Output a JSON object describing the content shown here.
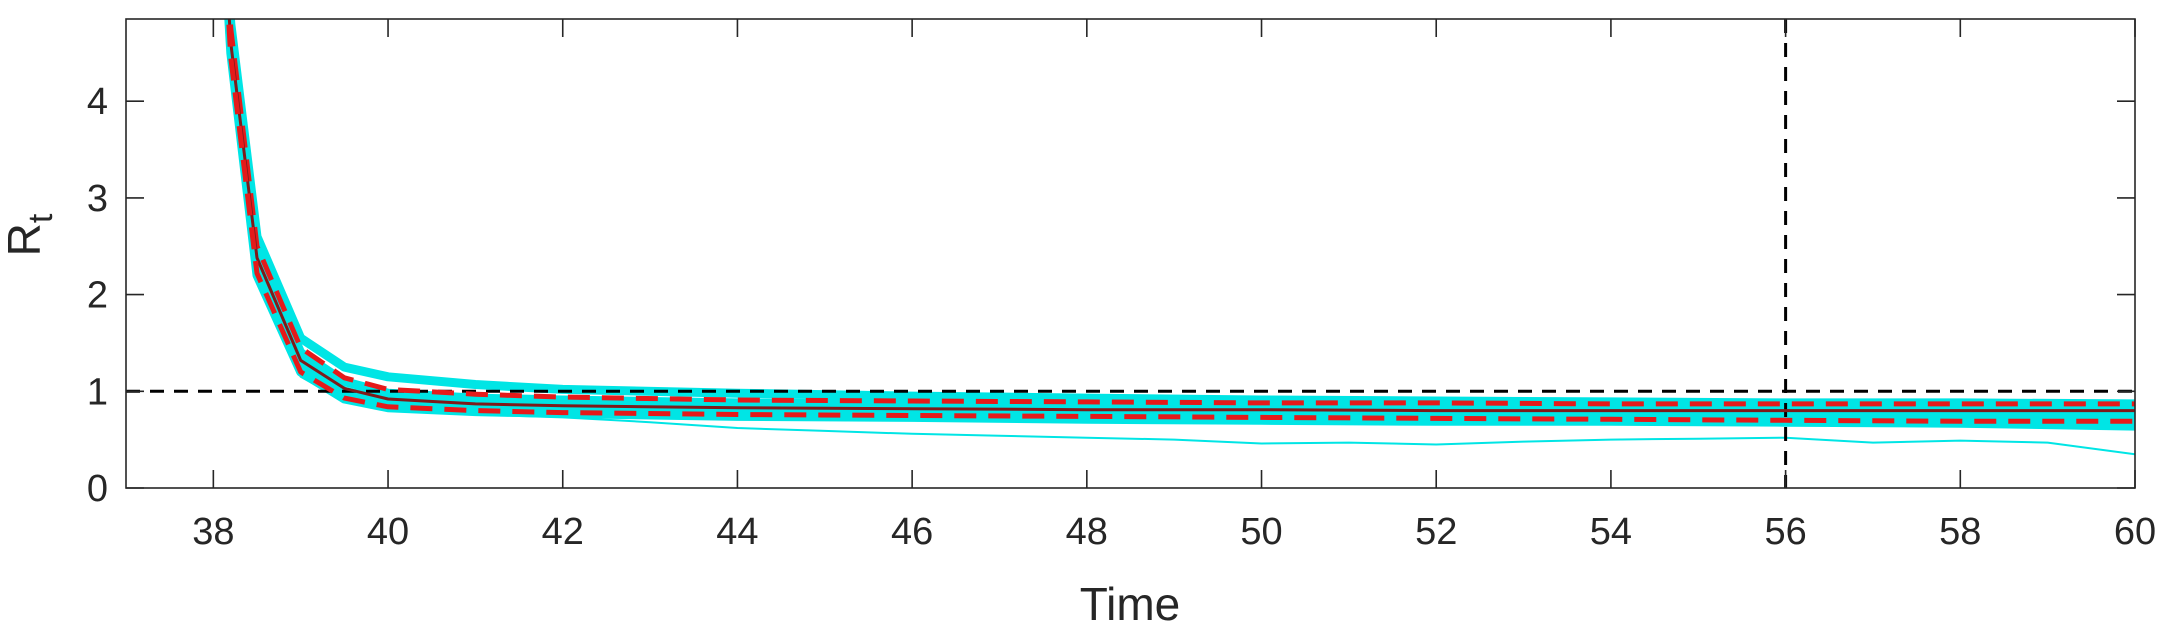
{
  "chart_data": {
    "type": "line",
    "title": "",
    "xlabel": "Time",
    "ylabel": "R",
    "ylabel_subscript": "t",
    "xlim": [
      37,
      60
    ],
    "ylim": [
      0,
      4.85
    ],
    "xticks": [
      38,
      40,
      42,
      44,
      46,
      48,
      50,
      52,
      54,
      56,
      58,
      60
    ],
    "xtick_labels": [
      "38",
      "40",
      "42",
      "44",
      "46",
      "48",
      "50",
      "52",
      "54",
      "56",
      "58",
      "60"
    ],
    "yticks": [
      0,
      1,
      2,
      3,
      4
    ],
    "ytick_labels": [
      "0",
      "1",
      "2",
      "3",
      "4"
    ],
    "grid": false,
    "legend": "none",
    "reference_lines": [
      {
        "orientation": "horizontal",
        "value": 1,
        "style": "dashed",
        "color": "#000000"
      },
      {
        "orientation": "vertical",
        "value": 56,
        "style": "dashed",
        "color": "#000000"
      }
    ],
    "ensemble": {
      "color": "#00e5e5",
      "members": [
        {
          "points": [
            [
              38.0,
              7.6
            ],
            [
              38.2,
              4.8
            ],
            [
              38.5,
              2.6
            ],
            [
              39.0,
              1.55
            ],
            [
              39.5,
              1.25
            ],
            [
              40.0,
              1.15
            ],
            [
              41.0,
              1.07
            ],
            [
              42.0,
              1.02
            ],
            [
              44.0,
              0.98
            ],
            [
              46.0,
              0.95
            ],
            [
              48.0,
              0.93
            ],
            [
              50.0,
              0.91
            ],
            [
              52.0,
              0.9
            ],
            [
              54.0,
              0.89
            ],
            [
              56.0,
              0.88
            ],
            [
              58.0,
              0.88
            ],
            [
              60.0,
              0.87
            ]
          ]
        },
        {
          "points": [
            [
              38.0,
              7.6
            ],
            [
              38.2,
              4.7
            ],
            [
              38.5,
              2.45
            ],
            [
              39.0,
              1.4
            ],
            [
              39.5,
              1.1
            ],
            [
              40.0,
              0.98
            ],
            [
              41.0,
              0.93
            ],
            [
              42.0,
              0.91
            ],
            [
              44.0,
              0.88
            ],
            [
              46.0,
              0.87
            ],
            [
              48.0,
              0.86
            ],
            [
              50.0,
              0.85
            ],
            [
              52.0,
              0.85
            ],
            [
              54.0,
              0.84
            ],
            [
              56.0,
              0.84
            ],
            [
              58.0,
              0.83
            ],
            [
              60.0,
              0.83
            ]
          ]
        },
        {
          "points": [
            [
              38.0,
              7.6
            ],
            [
              38.2,
              4.6
            ],
            [
              38.5,
              2.35
            ],
            [
              39.0,
              1.3
            ],
            [
              39.5,
              1.0
            ],
            [
              40.0,
              0.9
            ],
            [
              41.0,
              0.86
            ],
            [
              42.0,
              0.84
            ],
            [
              44.0,
              0.81
            ],
            [
              46.0,
              0.8
            ],
            [
              48.0,
              0.79
            ],
            [
              50.0,
              0.78
            ],
            [
              52.0,
              0.78
            ],
            [
              54.0,
              0.77
            ],
            [
              56.0,
              0.77
            ],
            [
              58.0,
              0.77
            ],
            [
              60.0,
              0.76
            ]
          ]
        },
        {
          "points": [
            [
              38.0,
              7.6
            ],
            [
              38.2,
              4.55
            ],
            [
              38.5,
              2.3
            ],
            [
              39.0,
              1.25
            ],
            [
              39.5,
              0.96
            ],
            [
              40.0,
              0.86
            ],
            [
              41.0,
              0.82
            ],
            [
              42.0,
              0.79
            ],
            [
              44.0,
              0.76
            ],
            [
              46.0,
              0.74
            ],
            [
              48.0,
              0.73
            ],
            [
              50.0,
              0.72
            ],
            [
              52.0,
              0.72
            ],
            [
              54.0,
              0.71
            ],
            [
              56.0,
              0.71
            ],
            [
              58.0,
              0.7
            ],
            [
              60.0,
              0.7
            ]
          ]
        },
        {
          "points": [
            [
              38.0,
              7.6
            ],
            [
              38.2,
              4.5
            ],
            [
              38.5,
              2.2
            ],
            [
              39.0,
              1.2
            ],
            [
              39.5,
              0.92
            ],
            [
              40.0,
              0.83
            ],
            [
              41.0,
              0.79
            ],
            [
              42.0,
              0.77
            ],
            [
              44.0,
              0.74
            ],
            [
              46.0,
              0.73
            ],
            [
              48.0,
              0.71
            ],
            [
              50.0,
              0.7
            ],
            [
              52.0,
              0.69
            ],
            [
              54.0,
              0.69
            ],
            [
              56.0,
              0.68
            ],
            [
              58.0,
              0.67
            ],
            [
              60.0,
              0.64
            ]
          ]
        },
        {
          "points": [
            [
              38.0,
              7.6
            ],
            [
              38.2,
              4.4
            ],
            [
              38.5,
              2.15
            ],
            [
              39.0,
              1.15
            ],
            [
              39.5,
              0.9
            ],
            [
              40.0,
              0.8
            ],
            [
              41.0,
              0.76
            ],
            [
              42.0,
              0.73
            ],
            [
              43.0,
              0.68
            ],
            [
              44.0,
              0.62
            ],
            [
              45.0,
              0.59
            ],
            [
              46.0,
              0.56
            ],
            [
              47.0,
              0.54
            ],
            [
              48.0,
              0.52
            ],
            [
              49.0,
              0.5
            ],
            [
              50.0,
              0.46
            ],
            [
              51.0,
              0.47
            ],
            [
              52.0,
              0.45
            ],
            [
              53.0,
              0.48
            ],
            [
              54.0,
              0.5
            ],
            [
              55.0,
              0.51
            ],
            [
              56.0,
              0.52
            ],
            [
              57.0,
              0.47
            ],
            [
              58.0,
              0.49
            ],
            [
              59.0,
              0.47
            ],
            [
              60.0,
              0.35
            ]
          ]
        }
      ]
    },
    "series": [
      {
        "role": "upper-bound",
        "color": "#e51a1a",
        "style": "dashed",
        "points": [
          [
            38.0,
            7.6
          ],
          [
            38.2,
            4.75
          ],
          [
            38.5,
            2.5
          ],
          [
            39.0,
            1.45
          ],
          [
            39.5,
            1.14
          ],
          [
            40.0,
            1.02
          ],
          [
            41.0,
            0.97
          ],
          [
            42.0,
            0.94
          ],
          [
            44.0,
            0.91
          ],
          [
            46.0,
            0.9
          ],
          [
            48.0,
            0.89
          ],
          [
            50.0,
            0.88
          ],
          [
            52.0,
            0.88
          ],
          [
            54.0,
            0.87
          ],
          [
            56.0,
            0.87
          ],
          [
            58.0,
            0.87
          ],
          [
            60.0,
            0.87
          ]
        ]
      },
      {
        "role": "mean",
        "color": "#7f1a1a",
        "style": "solid",
        "points": [
          [
            38.0,
            7.6
          ],
          [
            38.2,
            4.6
          ],
          [
            38.5,
            2.38
          ],
          [
            39.0,
            1.32
          ],
          [
            39.5,
            1.03
          ],
          [
            40.0,
            0.92
          ],
          [
            41.0,
            0.87
          ],
          [
            42.0,
            0.85
          ],
          [
            44.0,
            0.83
          ],
          [
            46.0,
            0.82
          ],
          [
            48.0,
            0.81
          ],
          [
            50.0,
            0.81
          ],
          [
            52.0,
            0.8
          ],
          [
            54.0,
            0.8
          ],
          [
            56.0,
            0.8
          ],
          [
            58.0,
            0.8
          ],
          [
            60.0,
            0.8
          ]
        ]
      },
      {
        "role": "lower-bound",
        "color": "#e51a1a",
        "style": "dashed",
        "points": [
          [
            38.0,
            7.6
          ],
          [
            38.2,
            4.45
          ],
          [
            38.5,
            2.22
          ],
          [
            39.0,
            1.2
          ],
          [
            39.5,
            0.93
          ],
          [
            40.0,
            0.84
          ],
          [
            41.0,
            0.8
          ],
          [
            42.0,
            0.78
          ],
          [
            44.0,
            0.76
          ],
          [
            46.0,
            0.75
          ],
          [
            48.0,
            0.74
          ],
          [
            50.0,
            0.73
          ],
          [
            52.0,
            0.72
          ],
          [
            54.0,
            0.71
          ],
          [
            56.0,
            0.7
          ],
          [
            58.0,
            0.69
          ],
          [
            60.0,
            0.69
          ]
        ]
      }
    ]
  }
}
